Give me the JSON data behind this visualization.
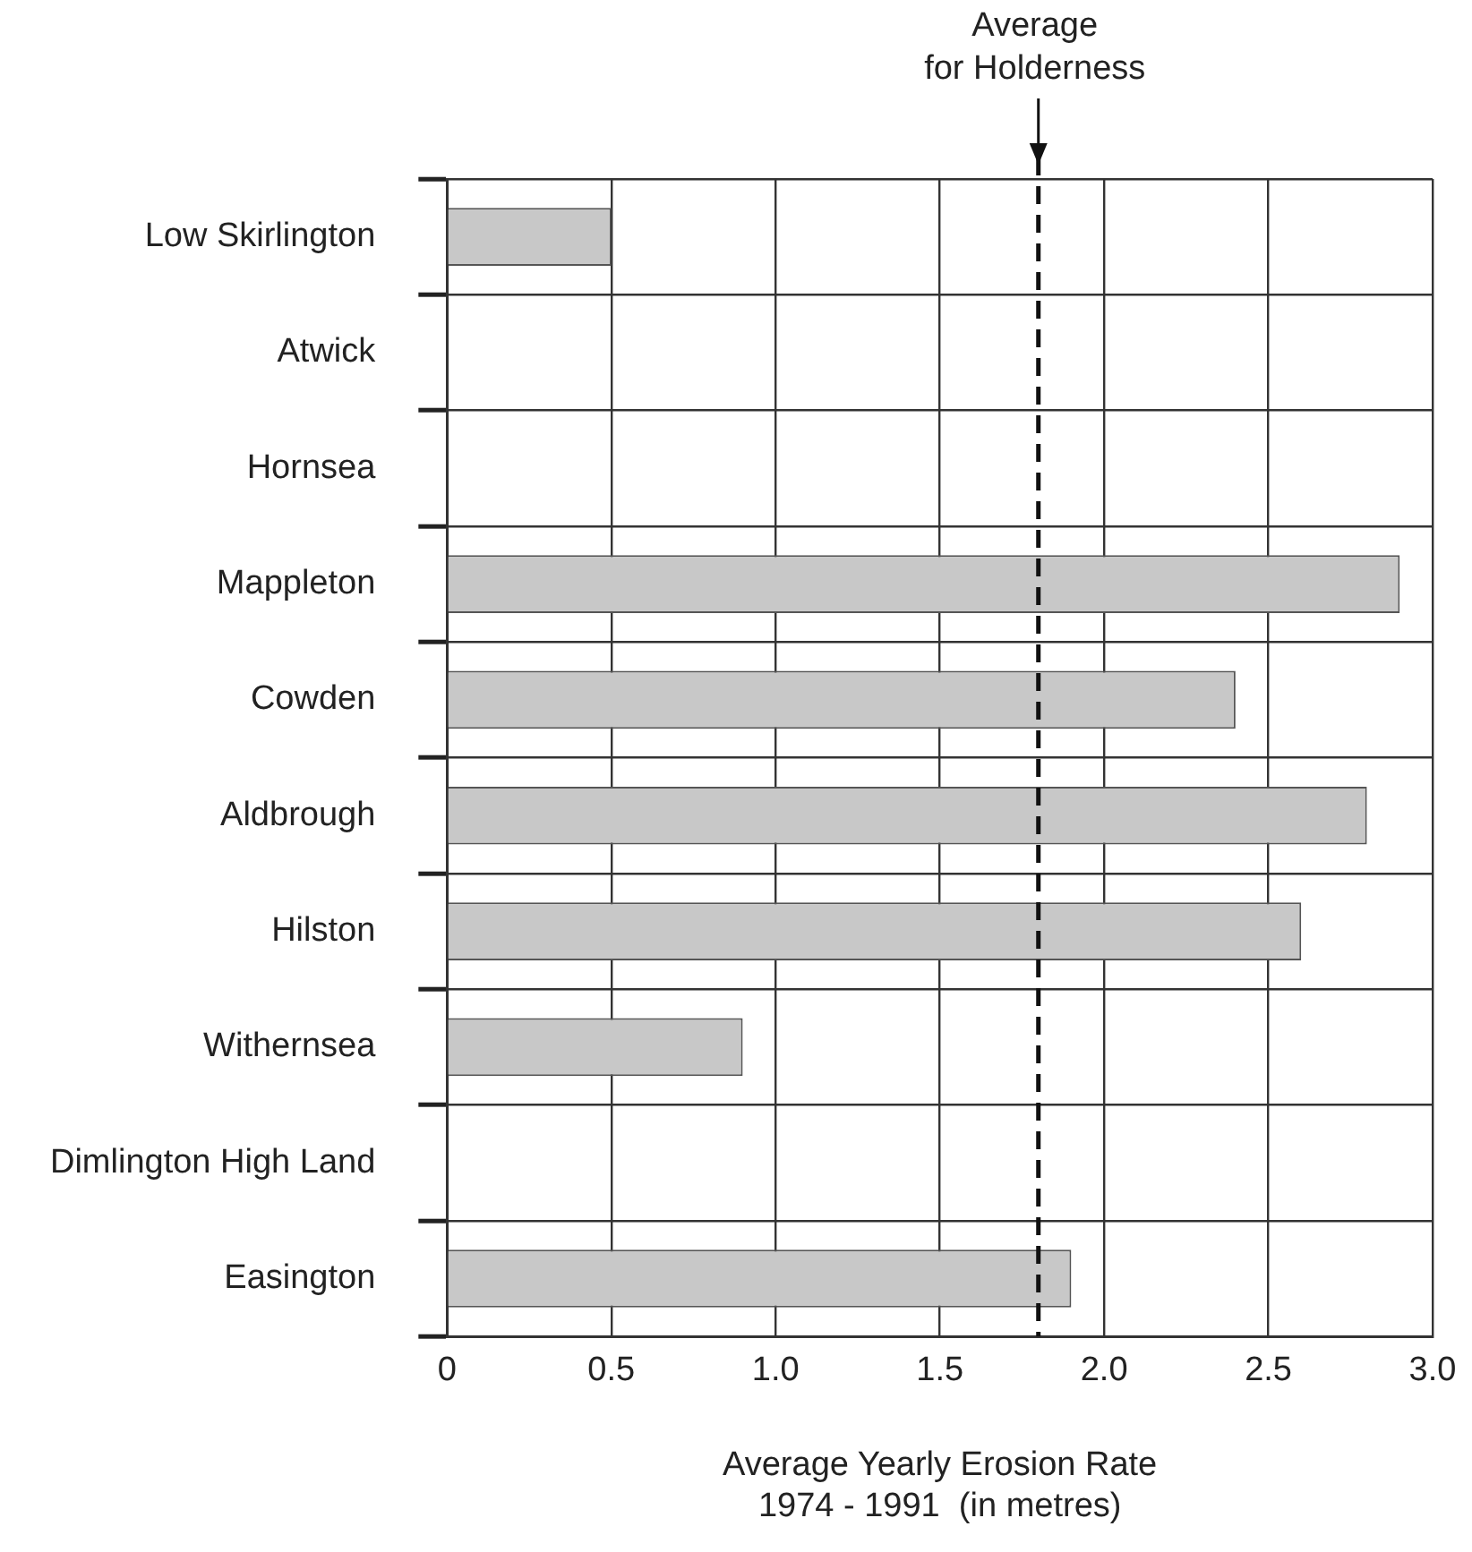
{
  "chart_data": {
    "type": "bar",
    "orientation": "horizontal",
    "categories": [
      "Low Skirlington",
      "Atwick",
      "Hornsea",
      "Mappleton",
      "Cowden",
      "Aldbrough",
      "Hilston",
      "Withernsea",
      "Dimlington High Land",
      "Easington"
    ],
    "values": [
      0.5,
      null,
      null,
      2.9,
      2.4,
      2.8,
      2.6,
      0.9,
      null,
      1.9
    ],
    "color": "#c8c8c8",
    "xlabel": "Average Yearly Erosion Rate\n1974 - 1991  (in metres)",
    "xlim": [
      0,
      3
    ],
    "xticks": [
      0,
      0.5,
      {
        "value": 1,
        "label": "1.0"
      },
      {
        "value": 1.5,
        "label": "1.5"
      },
      {
        "value": 2,
        "label": "2.0"
      },
      {
        "value": 2.5,
        "label": "2.5"
      },
      {
        "value": 3,
        "label": "3.0"
      }
    ],
    "ref_lines": [
      {
        "axis": "x",
        "value": 1.8,
        "label": "Average\nfor Holderness",
        "line_style": "dashed",
        "color": "#111111"
      }
    ],
    "grid": true,
    "legend": false
  }
}
